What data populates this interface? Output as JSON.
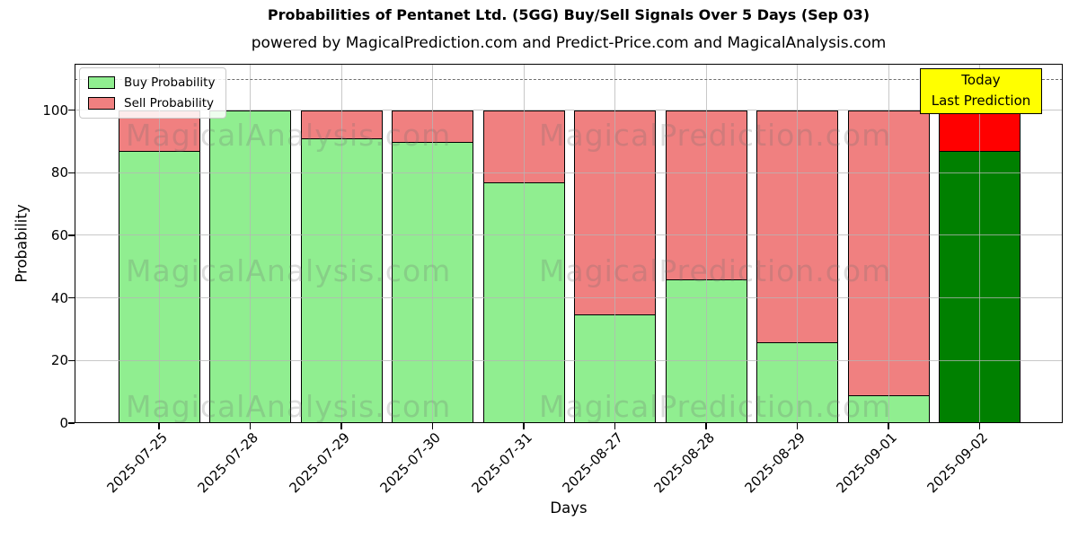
{
  "title": "Probabilities of Pentanet Ltd. (5GG) Buy/Sell Signals Over 5 Days (Sep 03)",
  "subtitle": "powered by MagicalPrediction.com and Predict-Price.com and MagicalAnalysis.com",
  "legend": {
    "items": [
      {
        "label": "Buy Probability",
        "color": "#90ee90"
      },
      {
        "label": "Sell Probability",
        "color": "#f08080"
      }
    ]
  },
  "annotation_box": {
    "line1": "Today",
    "line2": "Last Prediction",
    "bg_color": "#ffff00",
    "border_color": "#000000"
  },
  "watermarks": {
    "left_text": "MagicalAnalysis.com",
    "right_text": "MagicalPrediction.com"
  },
  "chart_data": {
    "type": "bar",
    "stacked": true,
    "title": "Probabilities of Pentanet Ltd. (5GG) Buy/Sell Signals Over 5 Days (Sep 03)",
    "xlabel": "Days",
    "ylabel": "Probability",
    "categories": [
      "2025-07-25",
      "2025-07-28",
      "2025-07-29",
      "2025-07-30",
      "2025-07-31",
      "2025-08-27",
      "2025-08-28",
      "2025-08-29",
      "2025-09-01",
      "2025-09-02"
    ],
    "series": [
      {
        "name": "Buy Probability",
        "color": "#90ee90",
        "values": [
          87,
          100,
          91,
          90,
          77,
          35,
          46,
          26,
          9,
          87
        ]
      },
      {
        "name": "Sell Probability",
        "color": "#f08080",
        "values": [
          13,
          0,
          9,
          10,
          23,
          65,
          54,
          74,
          91,
          13
        ]
      }
    ],
    "last_bar_override": {
      "buy_color": "#008000",
      "sell_color": "#ff0000"
    },
    "bar_edge_color": "#000000",
    "yticks": [
      0,
      20,
      40,
      60,
      80,
      100
    ],
    "ylim": [
      0,
      114.8
    ],
    "threshold_line_y": 110,
    "grid": true,
    "legend_position": "upper left"
  }
}
